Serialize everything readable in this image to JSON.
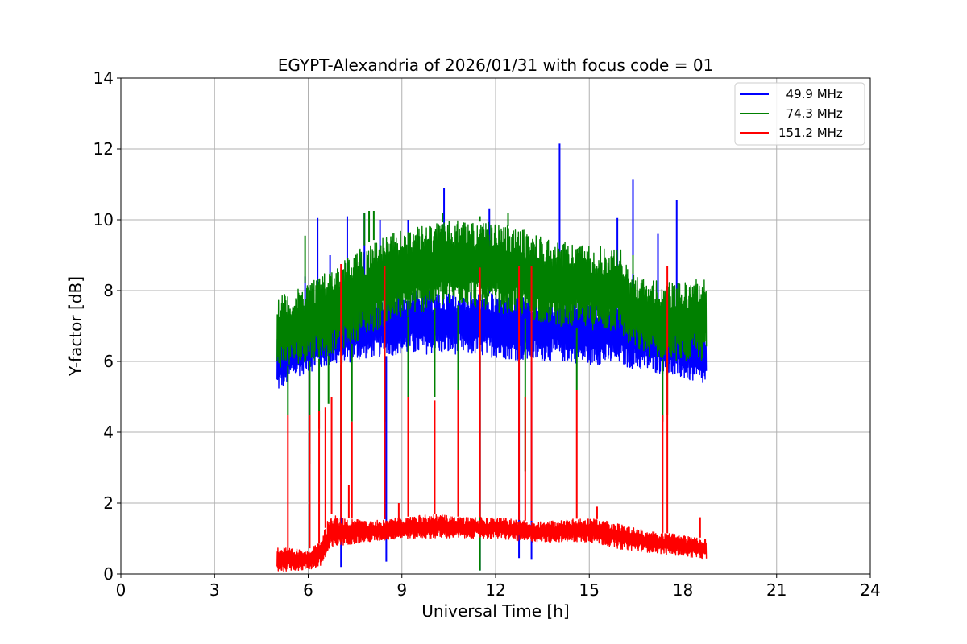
{
  "chart_data": {
    "type": "line",
    "title": "EGYPT-Alexandria of 2026/01/31 with focus code = 01",
    "xlabel": "Universal Time [h]",
    "ylabel": "Y-factor [dB]",
    "xlim": [
      0,
      24
    ],
    "ylim": [
      0,
      14
    ],
    "xticks": [
      0,
      3,
      6,
      9,
      12,
      15,
      18,
      21,
      24
    ],
    "yticks": [
      0,
      2,
      4,
      6,
      8,
      10,
      12,
      14
    ],
    "grid": true,
    "legend_position": "top-right",
    "series": [
      {
        "name": "  49.9 MHz",
        "color": "#0000ff",
        "range": [
          5.0,
          18.75
        ],
        "band": [
          [
            5.0,
            5.1,
            6.8
          ],
          [
            5.5,
            5.5,
            7.2
          ],
          [
            6.0,
            5.7,
            7.4
          ],
          [
            6.5,
            5.8,
            7.6
          ],
          [
            7.0,
            5.9,
            7.8
          ],
          [
            8.0,
            6.1,
            7.9
          ],
          [
            9.0,
            6.2,
            8.0
          ],
          [
            10.0,
            6.2,
            8.0
          ],
          [
            11.0,
            6.2,
            8.0
          ],
          [
            12.0,
            6.1,
            7.9
          ],
          [
            13.0,
            6.0,
            7.8
          ],
          [
            14.0,
            6.0,
            7.9
          ],
          [
            15.0,
            5.9,
            7.8
          ],
          [
            16.0,
            5.9,
            7.7
          ],
          [
            16.3,
            5.8,
            7.6
          ],
          [
            17.0,
            5.7,
            7.4
          ],
          [
            18.0,
            5.5,
            7.1
          ],
          [
            18.75,
            5.3,
            6.9
          ]
        ],
        "spikes": [
          [
            5.9,
            8.4
          ],
          [
            6.3,
            10.05
          ],
          [
            6.7,
            9.0
          ],
          [
            7.25,
            10.1
          ],
          [
            7.8,
            10.2
          ],
          [
            8.3,
            10.0
          ],
          [
            9.2,
            10.0
          ],
          [
            10.35,
            10.9
          ],
          [
            11.8,
            10.3
          ],
          [
            14.05,
            12.15
          ],
          [
            15.9,
            10.05
          ],
          [
            16.4,
            11.15
          ],
          [
            17.2,
            9.6
          ],
          [
            17.8,
            10.55
          ]
        ],
        "dips": [
          [
            7.05,
            0.2
          ],
          [
            8.5,
            0.35
          ],
          [
            12.75,
            0.45
          ],
          [
            13.15,
            0.4
          ],
          [
            11.5,
            0.1
          ]
        ]
      },
      {
        "name": "  74.3 MHz",
        "color": "#008000",
        "range": [
          5.0,
          18.75
        ],
        "band": [
          [
            5.0,
            5.8,
            7.9
          ],
          [
            5.5,
            5.9,
            7.9
          ],
          [
            6.0,
            6.0,
            8.3
          ],
          [
            6.5,
            6.1,
            8.5
          ],
          [
            7.0,
            6.3,
            8.8
          ],
          [
            8.0,
            6.8,
            9.4
          ],
          [
            9.0,
            7.2,
            9.7
          ],
          [
            10.0,
            7.5,
            9.9
          ],
          [
            11.0,
            7.6,
            10.0
          ],
          [
            12.0,
            7.4,
            9.9
          ],
          [
            13.0,
            7.2,
            9.7
          ],
          [
            14.0,
            7.0,
            9.4
          ],
          [
            15.0,
            6.9,
            9.3
          ],
          [
            16.0,
            6.8,
            9.2
          ],
          [
            16.3,
            6.4,
            8.5
          ],
          [
            17.0,
            6.1,
            8.3
          ],
          [
            18.0,
            6.0,
            8.2
          ],
          [
            18.75,
            6.0,
            8.5
          ]
        ],
        "spikes": [
          [
            5.9,
            9.55
          ],
          [
            7.8,
            10.2
          ],
          [
            7.95,
            10.25
          ],
          [
            8.1,
            10.25
          ],
          [
            10.3,
            10.2
          ],
          [
            11.5,
            10.1
          ],
          [
            12.4,
            10.2
          ],
          [
            16.4,
            9.0
          ]
        ],
        "dips": [
          [
            5.35,
            4.5
          ],
          [
            6.05,
            3.1
          ],
          [
            6.35,
            4.1
          ],
          [
            6.65,
            4.8
          ],
          [
            7.05,
            2.8
          ],
          [
            7.4,
            4.3
          ],
          [
            8.45,
            4.3
          ],
          [
            9.2,
            4.5
          ],
          [
            10.05,
            5.0
          ],
          [
            10.8,
            5.2
          ],
          [
            11.5,
            0.1
          ],
          [
            12.95,
            2.9
          ],
          [
            14.6,
            5.2
          ],
          [
            17.35,
            4.3
          ],
          [
            17.5,
            4.5
          ]
        ]
      },
      {
        "name": "151.2 MHz",
        "color": "#ff0000",
        "range": [
          5.0,
          18.75
        ],
        "band": [
          [
            5.0,
            0.05,
            0.8
          ],
          [
            5.5,
            0.1,
            0.7
          ],
          [
            6.0,
            0.1,
            0.7
          ],
          [
            6.4,
            0.2,
            0.9
          ],
          [
            6.7,
            0.6,
            1.7
          ],
          [
            7.0,
            0.8,
            1.6
          ],
          [
            8.0,
            0.9,
            1.5
          ],
          [
            9.0,
            1.0,
            1.6
          ],
          [
            10.0,
            1.0,
            1.7
          ],
          [
            11.0,
            1.0,
            1.6
          ],
          [
            12.0,
            1.0,
            1.6
          ],
          [
            13.0,
            0.9,
            1.5
          ],
          [
            14.0,
            0.9,
            1.5
          ],
          [
            15.0,
            0.9,
            1.6
          ],
          [
            16.0,
            0.7,
            1.4
          ],
          [
            17.0,
            0.6,
            1.2
          ],
          [
            18.0,
            0.5,
            1.1
          ],
          [
            18.75,
            0.4,
            1.0
          ]
        ],
        "spikes": [
          [
            5.35,
            4.5
          ],
          [
            6.05,
            4.5
          ],
          [
            6.35,
            4.6
          ],
          [
            6.55,
            4.7
          ],
          [
            6.75,
            5.0
          ],
          [
            7.05,
            8.75
          ],
          [
            7.3,
            2.5
          ],
          [
            7.4,
            4.3
          ],
          [
            8.45,
            8.7
          ],
          [
            8.9,
            2.0
          ],
          [
            9.2,
            5.0
          ],
          [
            10.05,
            4.9
          ],
          [
            10.8,
            5.2
          ],
          [
            11.5,
            8.65
          ],
          [
            12.75,
            8.7
          ],
          [
            12.95,
            5.0
          ],
          [
            13.15,
            8.7
          ],
          [
            14.6,
            5.2
          ],
          [
            15.25,
            1.9
          ],
          [
            17.35,
            4.5
          ],
          [
            17.5,
            8.7
          ],
          [
            18.55,
            1.6
          ]
        ],
        "dips": []
      }
    ]
  }
}
